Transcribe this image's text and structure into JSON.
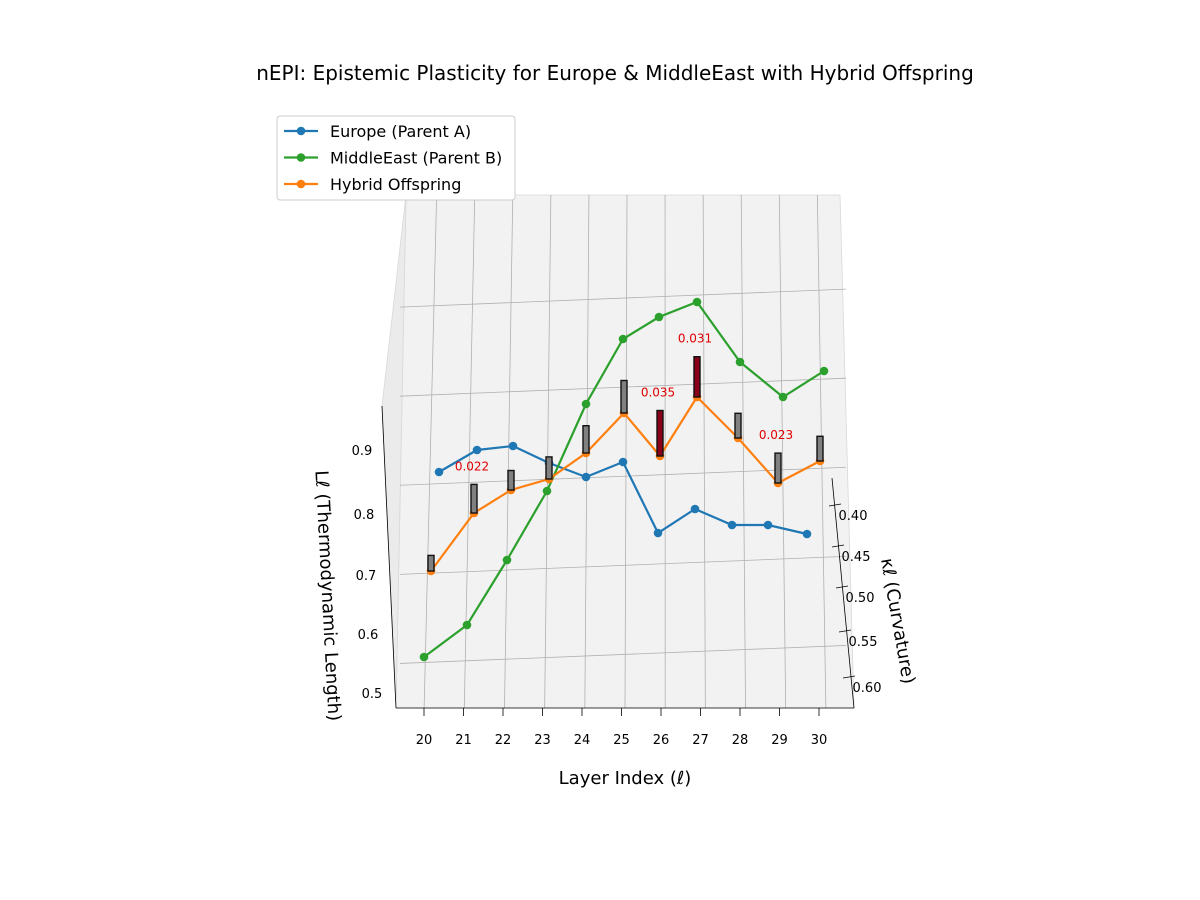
{
  "chart_data": {
    "type": "line",
    "title": "nEPI: Epistemic Plasticity for Europe & MiddleEast with Hybrid Offspring",
    "xlabel": "Layer Index (ℓ)",
    "ylabel": "κℓ (Curvature)",
    "zlabel": "Lℓ (Thermodynamic Length)",
    "xlim": [
      19.3,
      30.7
    ],
    "ylim": [
      0.37,
      0.63
    ],
    "zlim": [
      0.45,
      1.0
    ],
    "x_ticks": [
      "20",
      "21",
      "22",
      "23",
      "24",
      "25",
      "26",
      "27",
      "28",
      "29",
      "30"
    ],
    "y_ticks": [
      "0.40",
      "0.45",
      "0.50",
      "0.55",
      "0.60"
    ],
    "z_ticks": [
      "0.5",
      "0.6",
      "0.7",
      "0.8",
      "0.9"
    ],
    "x": [
      20,
      21,
      22,
      23,
      24,
      25,
      26,
      27,
      28,
      29,
      30
    ],
    "series": [
      {
        "name": "Europe (Parent A)",
        "color": "#1f77b4",
        "kappa": [
          0.38,
          0.38,
          0.38,
          0.38,
          0.38,
          0.38,
          0.38,
          0.38,
          0.38,
          0.38,
          0.38
        ],
        "length": [
          0.86,
          0.9,
          0.905,
          0.878,
          0.853,
          0.88,
          0.727,
          0.766,
          0.75,
          0.752,
          0.74
        ]
      },
      {
        "name": "MiddleEast (Parent B)",
        "color": "#2ca02c",
        "kappa": [
          0.61,
          0.58,
          0.55,
          0.52,
          0.49,
          0.46,
          0.43,
          0.4,
          0.4,
          0.4,
          0.4
        ],
        "length": [
          0.55,
          0.56,
          0.64,
          0.81,
          0.97,
          1.05,
          1.06,
          1.06,
          0.98,
          0.95,
          0.98
        ]
      },
      {
        "name": "Hybrid Offspring",
        "color": "#ff7f0e",
        "kappa": [
          0.57,
          0.53,
          0.5,
          0.47,
          0.44,
          0.42,
          0.42,
          0.4,
          0.4,
          0.4,
          0.4
        ],
        "length": [
          0.7,
          0.78,
          0.8,
          0.81,
          0.84,
          0.9,
          0.87,
          0.95,
          0.88,
          0.82,
          0.85
        ]
      }
    ],
    "epsilon_bars": {
      "values": [
        0.012,
        0.022,
        0.015,
        0.017,
        0.021,
        0.025,
        0.035,
        0.031,
        0.019,
        0.023,
        0.019
      ],
      "highlight_color": "#8b0018",
      "normal_color": "#808080"
    },
    "annotations": [
      {
        "text": "0.022",
        "x": 21,
        "color": "#e00000"
      },
      {
        "text": "0.035",
        "x": 26,
        "color": "#e00000"
      },
      {
        "text": "0.031",
        "x": 27,
        "color": "#e00000"
      },
      {
        "text": "0.023",
        "x": 29,
        "color": "#e00000"
      }
    ],
    "legend_placement": "upper-left",
    "grid": true
  }
}
